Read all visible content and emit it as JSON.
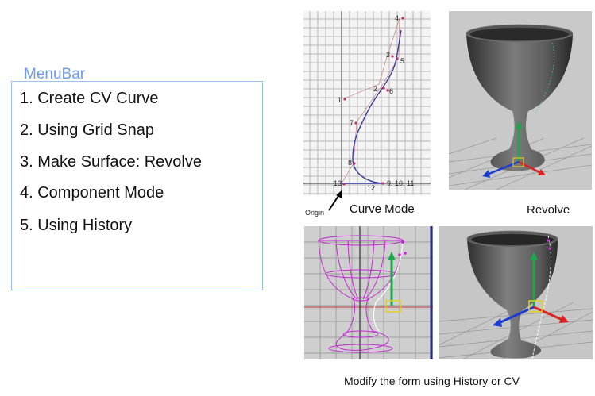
{
  "menubar": {
    "title": "MenuBar",
    "items": [
      {
        "label": "1.  Create CV Curve"
      },
      {
        "label": "2.  Using Grid Snap"
      },
      {
        "label": "3.  Make Surface: Revolve"
      },
      {
        "label": "4.  Component Mode"
      },
      {
        "label": "5.  Using History"
      }
    ]
  },
  "curve_panel": {
    "caption": "Curve Mode",
    "origin_label": "Origin",
    "cv_labels": [
      "4",
      "3",
      "5",
      "2",
      "6",
      "1",
      "7",
      "8",
      "13",
      "12",
      "9, 10, 11"
    ]
  },
  "revolve_panel": {
    "caption": "Revolve"
  },
  "footer": {
    "caption": "Modify the form using History or CV"
  }
}
